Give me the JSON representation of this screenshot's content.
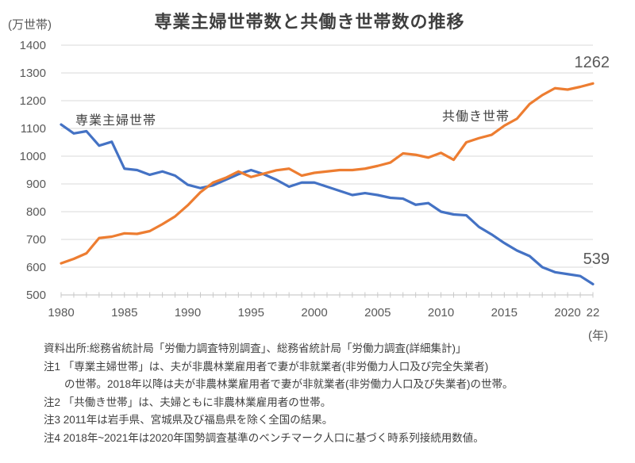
{
  "page": {
    "title": "専業主婦世帯数と共働き世帯数の推移"
  },
  "chart": {
    "unit_y": "(万世帯)",
    "unit_x": "(年)",
    "series_labels": {
      "housewife": "専業主婦世帯",
      "dual_income": "共働き世帯"
    },
    "end_labels": {
      "dual_income": "1262",
      "housewife": "539"
    }
  },
  "chart_data": {
    "type": "line",
    "title": "専業主婦世帯数と共働き世帯数の推移",
    "ylabel": "万世帯",
    "xlabel": "年",
    "ylim": [
      500,
      1400
    ],
    "y_ticks": [
      500,
      600,
      700,
      800,
      900,
      1000,
      1100,
      1200,
      1300,
      1400
    ],
    "grid": "horizontal",
    "legend_position": "inline-annotations",
    "x": [
      1980,
      1981,
      1982,
      1983,
      1984,
      1985,
      1986,
      1987,
      1988,
      1989,
      1990,
      1991,
      1992,
      1993,
      1994,
      1995,
      1996,
      1997,
      1998,
      1999,
      2000,
      2001,
      2002,
      2003,
      2004,
      2005,
      2006,
      2007,
      2008,
      2009,
      2010,
      2011,
      2012,
      2013,
      2014,
      2015,
      2016,
      2017,
      2018,
      2019,
      2020,
      2021,
      2022
    ],
    "x_tick_labels": [
      {
        "x": 1980,
        "label": "1980"
      },
      {
        "x": 1985,
        "label": "1985"
      },
      {
        "x": 1990,
        "label": "1990"
      },
      {
        "x": 1995,
        "label": "1995"
      },
      {
        "x": 2000,
        "label": "2000"
      },
      {
        "x": 2005,
        "label": "2005"
      },
      {
        "x": 2010,
        "label": "2010"
      },
      {
        "x": 2015,
        "label": "2015"
      },
      {
        "x": 2020,
        "label": "2020"
      },
      {
        "x": 2022,
        "label": "22"
      }
    ],
    "series": [
      {
        "name": "専業主婦世帯",
        "color": "#4472C4",
        "values": [
          1114,
          1082,
          1090,
          1038,
          1052,
          955,
          950,
          933,
          945,
          930,
          897,
          885,
          895,
          915,
          935,
          950,
          935,
          915,
          890,
          905,
          905,
          890,
          875,
          860,
          867,
          860,
          850,
          847,
          825,
          831,
          800,
          790,
          787,
          745,
          718,
          687,
          660,
          640,
          600,
          582,
          575,
          568,
          539
        ]
      },
      {
        "name": "共働き世帯",
        "color": "#ED7D31",
        "values": [
          614,
          630,
          650,
          705,
          710,
          722,
          720,
          730,
          755,
          783,
          823,
          870,
          905,
          922,
          945,
          925,
          937,
          949,
          955,
          930,
          940,
          945,
          950,
          950,
          955,
          965,
          977,
          1010,
          1005,
          995,
          1012,
          987,
          1050,
          1065,
          1077,
          1110,
          1135,
          1188,
          1220,
          1245,
          1240,
          1250,
          1262
        ]
      }
    ],
    "annotations": [
      {
        "text": "1262",
        "series": "共働き世帯",
        "x": 2022
      },
      {
        "text": "539",
        "series": "専業主婦世帯",
        "x": 2022
      }
    ]
  },
  "footnotes": {
    "lines": [
      "資料出所:総務省統計局「労働力調査特別調査」、総務省統計局「労働力調査(詳細集計)」",
      "注1 「専業主婦世帯」は、夫が非農林業雇用者で妻が非就業者(非労働力人口及び完全失業者)",
      "の世帯。2018年以降は夫が非農林業雇用者で妻が非就業者(非労働力人口及び失業者)の世帯。",
      "注2 「共働き世帯」は、夫婦ともに非農林業雇用者の世帯。",
      "注3 2011年は岩手県、宮城県及び福島県を除く全国の結果。",
      "注4 2018年~2021年は2020年国勢調査基準のベンチマーク人口に基づく時系列接続用数値。"
    ]
  }
}
